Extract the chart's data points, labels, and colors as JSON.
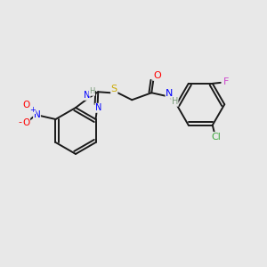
{
  "background_color": "#e8e8e8",
  "bond_color": "#1a1a1a",
  "atom_colors": {
    "N": "#0000ff",
    "O": "#ff0000",
    "S": "#ccaa00",
    "F": "#cc44cc",
    "Cl": "#44aa44",
    "H": "#779977",
    "C": "#1a1a1a"
  },
  "figsize": [
    3.0,
    3.0
  ],
  "dpi": 100,
  "lw": 1.4
}
